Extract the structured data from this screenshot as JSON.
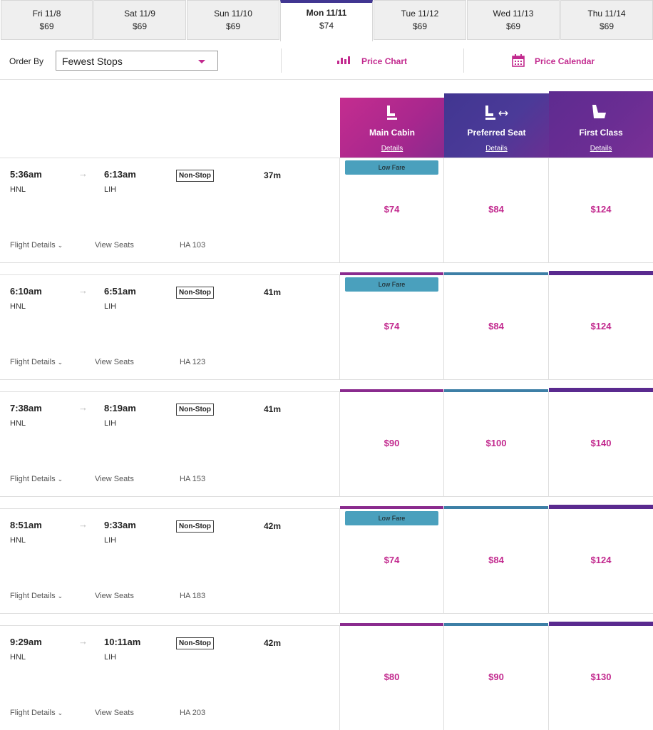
{
  "dates": [
    {
      "day": "Fri 11/8",
      "price": "$69",
      "selected": false
    },
    {
      "day": "Sat 11/9",
      "price": "$69",
      "selected": false
    },
    {
      "day": "Sun 11/10",
      "price": "$69",
      "selected": false
    },
    {
      "day": "Mon 11/11",
      "price": "$74",
      "selected": true
    },
    {
      "day": "Tue 11/12",
      "price": "$69",
      "selected": false
    },
    {
      "day": "Wed 11/13",
      "price": "$69",
      "selected": false
    },
    {
      "day": "Thu 11/14",
      "price": "$69",
      "selected": false
    }
  ],
  "toolbar": {
    "order_label": "Order By",
    "order_value": "Fewest Stops",
    "price_chart": "Price Chart",
    "price_calendar": "Price Calendar"
  },
  "cabins": [
    {
      "name": "Main Cabin",
      "link": "Details",
      "color": "#b8268e"
    },
    {
      "name": "Preferred Seat",
      "link": "Details",
      "color": "#413691"
    },
    {
      "name": "First Class",
      "link": "Details",
      "color": "#5a2a8f"
    }
  ],
  "colors": {
    "accent": "#c2298e",
    "low_fare": "#4aa0bd",
    "main_strip": "#8a2b8e",
    "preferred_strip": "#3d7fa6",
    "first_strip": "#5a2a8f"
  },
  "labels": {
    "flight_details": "Flight Details",
    "view_seats": "View Seats",
    "low_fare": "Low Fare"
  },
  "flights": [
    {
      "depart": "5:36am",
      "origin": "HNL",
      "arrive": "6:13am",
      "dest": "LIH",
      "stops": "Non-Stop",
      "duration": "37m",
      "flight_no": "HA 103",
      "main": "$74",
      "preferred": "$84",
      "first": "$124",
      "low_fare": true
    },
    {
      "depart": "6:10am",
      "origin": "HNL",
      "arrive": "6:51am",
      "dest": "LIH",
      "stops": "Non-Stop",
      "duration": "41m",
      "flight_no": "HA 123",
      "main": "$74",
      "preferred": "$84",
      "first": "$124",
      "low_fare": true
    },
    {
      "depart": "7:38am",
      "origin": "HNL",
      "arrive": "8:19am",
      "dest": "LIH",
      "stops": "Non-Stop",
      "duration": "41m",
      "flight_no": "HA 153",
      "main": "$90",
      "preferred": "$100",
      "first": "$140",
      "low_fare": false
    },
    {
      "depart": "8:51am",
      "origin": "HNL",
      "arrive": "9:33am",
      "dest": "LIH",
      "stops": "Non-Stop",
      "duration": "42m",
      "flight_no": "HA 183",
      "main": "$74",
      "preferred": "$84",
      "first": "$124",
      "low_fare": true
    },
    {
      "depart": "9:29am",
      "origin": "HNL",
      "arrive": "10:11am",
      "dest": "LIH",
      "stops": "Non-Stop",
      "duration": "42m",
      "flight_no": "HA 203",
      "main": "$80",
      "preferred": "$90",
      "first": "$130",
      "low_fare": false
    }
  ]
}
